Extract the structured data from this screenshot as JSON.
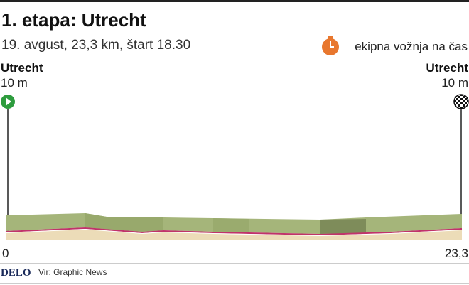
{
  "header": {
    "title": "1. etapa: Utrecht",
    "subtitle": "19. avgust, 23,3 km, štart 18.30",
    "stage_type": "ekipna vožnja na čas"
  },
  "start": {
    "name": "Utrecht",
    "elevation": "10 m"
  },
  "finish": {
    "name": "Utrecht",
    "elevation": "10 m"
  },
  "distance_axis": {
    "start": "0",
    "end": "23,3"
  },
  "footer": {
    "logo": "DELO",
    "source": "Vir: Graphic News"
  }
}
